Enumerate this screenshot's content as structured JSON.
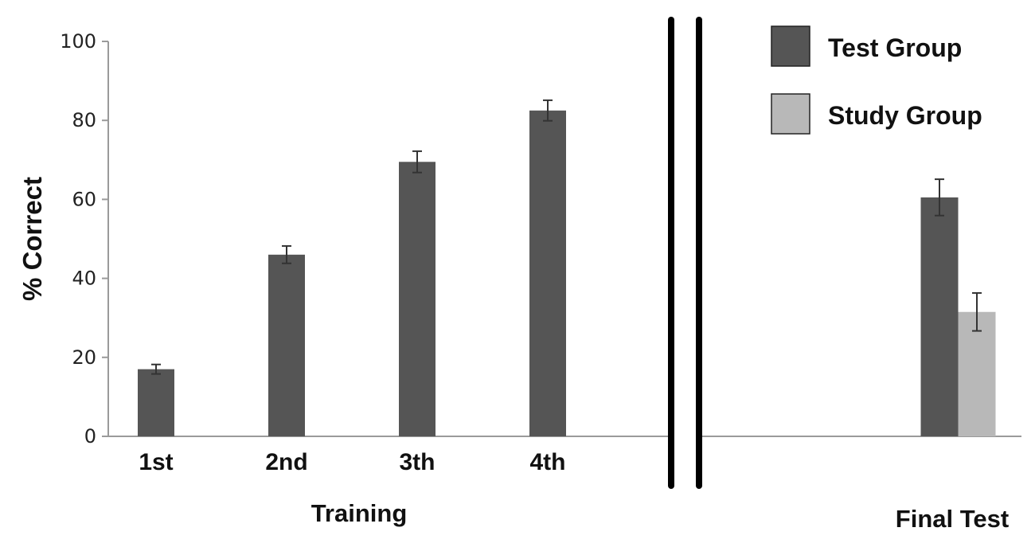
{
  "chart_data": {
    "type": "bar",
    "ylabel": "% Correct",
    "ylim": [
      0,
      100
    ],
    "yticks": [
      0,
      20,
      40,
      60,
      80,
      100
    ],
    "grid": false,
    "legend_position": "top-right",
    "colors": {
      "test": "#555555",
      "study": "#b8b8b8",
      "separator": "#000000",
      "axis": "#9a9a9a"
    },
    "series": [
      {
        "name": "Test Group",
        "color": "#555555"
      },
      {
        "name": "Study Group",
        "color": "#b8b8b8"
      }
    ],
    "panels": [
      {
        "label": "Training",
        "categories": [
          "1st",
          "2nd",
          "3th",
          "4th"
        ],
        "bars": [
          {
            "series": "Test Group",
            "values": [
              17,
              46,
              69.5,
              82.5
            ],
            "errors": [
              1.2,
              2.2,
              2.7,
              2.6
            ]
          }
        ]
      },
      {
        "label": "Final Test",
        "categories": [
          ""
        ],
        "bars": [
          {
            "series": "Test Group",
            "values": [
              60.5
            ],
            "errors": [
              4.6
            ]
          },
          {
            "series": "Study Group",
            "values": [
              31.5
            ],
            "errors": [
              4.8
            ]
          }
        ]
      }
    ]
  }
}
